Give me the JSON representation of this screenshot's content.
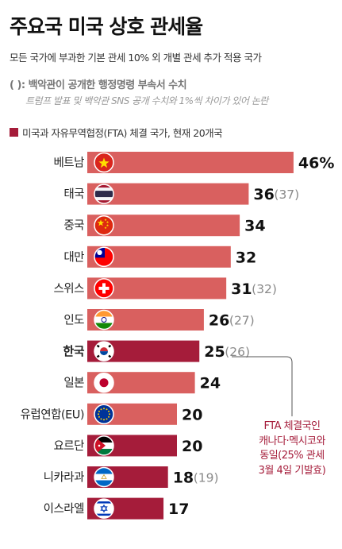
{
  "header": {
    "title": "주요국 미국 상호 관세율",
    "subtitle": "모든 국가에 부과한 기본 관세 10% 외 개별 관세 추가 적용 국가",
    "note_line1": "(   ): 백악관이 공개한 행정명령 부속서 수치",
    "note_line2": "트럼프 발표 및 백악관 SNS 공개 수치와 1%씩 차이가 있어 논란",
    "legend_label": "미국과 자유무역협정(FTA) 체결 국가, 현재 20개국"
  },
  "colors": {
    "bar_default": "#d9605f",
    "bar_fta": "#a51c3a",
    "annex_value": "#8a8a8a",
    "annotation": "#a51c3a"
  },
  "chart_data": {
    "type": "bar",
    "orientation": "horizontal",
    "title": "주요국 미국 상호 관세율",
    "xlim": [
      0,
      46
    ],
    "grid": false,
    "categories": [
      "베트남",
      "태국",
      "중국",
      "대만",
      "스위스",
      "인도",
      "한국",
      "일본",
      "유럽연합(EU)",
      "요르단",
      "니카라과",
      "이스라엘"
    ],
    "values": [
      46,
      36,
      34,
      32,
      31,
      26,
      25,
      24,
      20,
      20,
      18,
      17
    ],
    "value_labels": [
      "46%",
      "36",
      "34",
      "32",
      "31",
      "26",
      "25",
      "24",
      "20",
      "20",
      "18",
      "17"
    ],
    "annex_values": [
      null,
      37,
      null,
      null,
      32,
      27,
      26,
      null,
      null,
      null,
      19,
      null
    ],
    "fta": [
      false,
      false,
      false,
      false,
      false,
      false,
      true,
      false,
      false,
      true,
      true,
      true
    ],
    "highlight": "한국",
    "flag_icons": [
      "vietnam-flag-icon",
      "thailand-flag-icon",
      "china-flag-icon",
      "taiwan-flag-icon",
      "switzerland-flag-icon",
      "india-flag-icon",
      "korea-flag-icon",
      "japan-flag-icon",
      "eu-flag-icon",
      "jordan-flag-icon",
      "nicaragua-flag-icon",
      "israel-flag-icon"
    ]
  },
  "annotation": {
    "lines": [
      "FTA 체결국인",
      "캐나다·멕시코와",
      "동일(25% 관세",
      "3월 4일 기발효)"
    ]
  }
}
